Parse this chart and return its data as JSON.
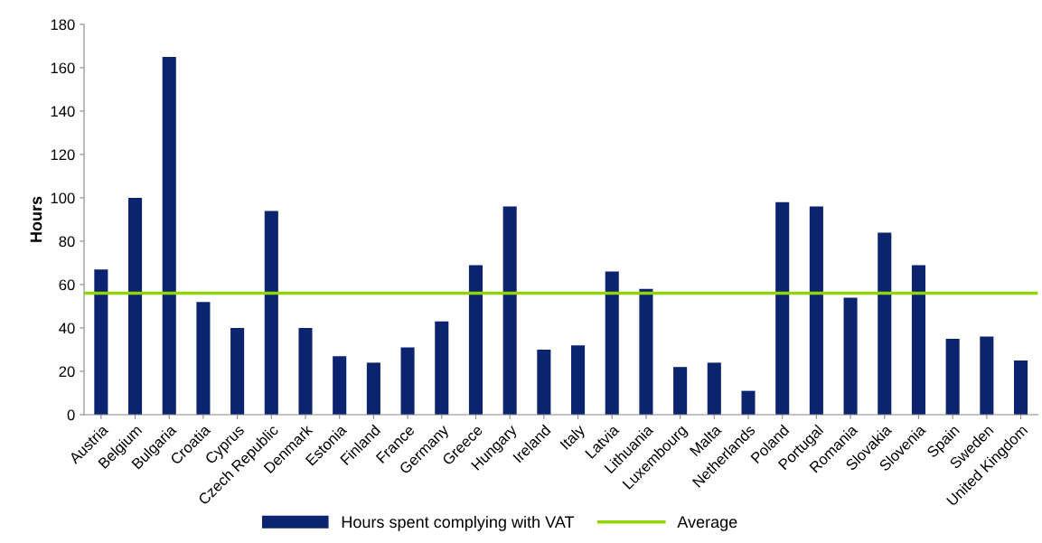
{
  "chart_data": {
    "type": "bar",
    "ylabel": "Hours",
    "categories": [
      "Austria",
      "Belgium",
      "Bulgaria",
      "Croatia",
      "Cyprus",
      "Czech Republic",
      "Denmark",
      "Estonia",
      "Finland",
      "France",
      "Germany",
      "Greece",
      "Hungary",
      "Ireland",
      "Italy",
      "Latvia",
      "Lithuania",
      "Luxembourg",
      "Malta",
      "Netherlands",
      "Poland",
      "Portugal",
      "Romania",
      "Slovakia",
      "Slovenia",
      "Spain",
      "Sweden",
      "United Kingdom"
    ],
    "series": [
      {
        "name": "Hours spent complying with VAT",
        "color": "#0c2470",
        "values": [
          67,
          100,
          165,
          52,
          40,
          94,
          40,
          27,
          24,
          31,
          43,
          69,
          96,
          30,
          32,
          66,
          58,
          22,
          24,
          11,
          98,
          96,
          54,
          84,
          69,
          35,
          36,
          25
        ]
      }
    ],
    "ref_lines": [
      {
        "axis": "y",
        "value": 56,
        "label": "Average",
        "color": "#92d400",
        "line_style": "solid"
      }
    ],
    "ylim": [
      0,
      180
    ],
    "yticks": [
      0,
      20,
      40,
      60,
      80,
      100,
      120,
      140,
      160,
      180
    ],
    "grid": false,
    "legend": "bottom"
  }
}
